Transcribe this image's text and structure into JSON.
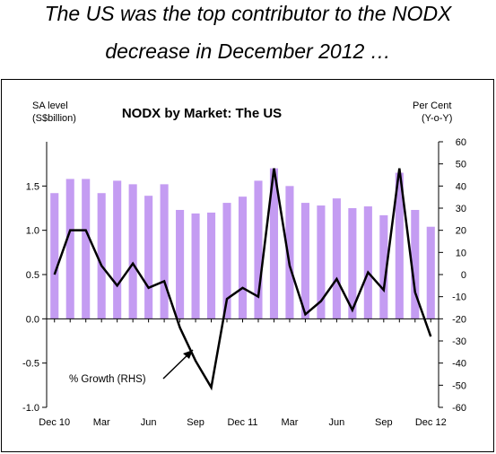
{
  "headline": {
    "line1": "The US was the top contributor to the NODX",
    "line2": "decrease in December 2012 …"
  },
  "chart_data": {
    "type": "bar+line",
    "title": "NODX by Market: The US",
    "left_axis_label": [
      "SA level",
      "(S$billion)"
    ],
    "right_axis_label": [
      "Per Cent",
      "(Y-o-Y)"
    ],
    "left_ylim": [
      -1.0,
      2.0
    ],
    "right_ylim": [
      -60,
      60
    ],
    "left_ticks": [
      "1.5",
      "1.0",
      "0.5",
      "0.0",
      "-0.5",
      "-1.0"
    ],
    "left_tick_values": [
      1.5,
      1.0,
      0.5,
      0.0,
      -0.5,
      -1.0
    ],
    "right_ticks": [
      "60",
      "50",
      "40",
      "30",
      "20",
      "10",
      "0",
      "-10",
      "-20",
      "-30",
      "-40",
      "-50",
      "-60"
    ],
    "right_tick_values": [
      60,
      50,
      40,
      30,
      20,
      10,
      0,
      -10,
      -20,
      -30,
      -40,
      -50,
      -60
    ],
    "x_tick_labels": [
      {
        "index": 0,
        "label": "Dec 10"
      },
      {
        "index": 3,
        "label": "Mar"
      },
      {
        "index": 6,
        "label": "Jun"
      },
      {
        "index": 9,
        "label": "Sep"
      },
      {
        "index": 12,
        "label": "Dec 11"
      },
      {
        "index": 15,
        "label": "Mar"
      },
      {
        "index": 18,
        "label": "Jun"
      },
      {
        "index": 21,
        "label": "Sep"
      },
      {
        "index": 24,
        "label": "Dec 12"
      }
    ],
    "series": [
      {
        "kind": "bar",
        "axis": "left",
        "color": "#c49cf2",
        "values": [
          1.42,
          1.58,
          1.58,
          1.42,
          1.56,
          1.52,
          1.39,
          1.52,
          1.23,
          1.19,
          1.2,
          1.31,
          1.38,
          1.56,
          1.7,
          1.5,
          1.31,
          1.28,
          1.36,
          1.25,
          1.27,
          1.17,
          1.65,
          1.23,
          1.04
        ]
      },
      {
        "kind": "line",
        "axis": "right",
        "name": "% Growth  (RHS)",
        "color": "#000000",
        "values": [
          0,
          20,
          20,
          4,
          -5,
          5,
          -6,
          -3,
          -24,
          -39,
          -51,
          -11,
          -6,
          -10,
          48,
          4,
          -18,
          -12,
          -2,
          -16,
          1,
          -7,
          48,
          -8,
          -28
        ]
      }
    ],
    "annotation": "% Growth  (RHS)"
  }
}
